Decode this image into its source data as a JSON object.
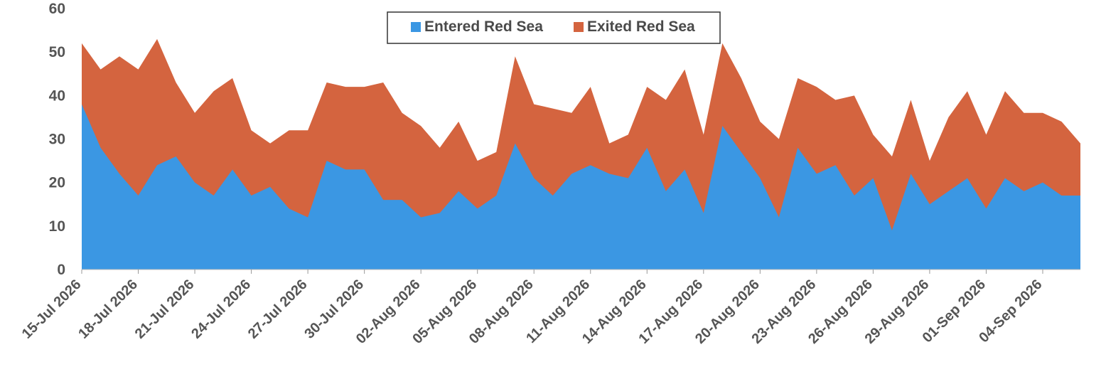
{
  "chart_data": {
    "type": "area",
    "stacked": true,
    "x_start_label": "15-Jul 2026",
    "x_tick_labels": [
      "15-Jul 2026",
      "18-Jul 2026",
      "21-Jul 2026",
      "24-Jul 2026",
      "27-Jul 2026",
      "30-Jul 2026",
      "02-Aug 2026",
      "05-Aug 2026",
      "08-Aug 2026",
      "11-Aug 2026",
      "14-Aug 2026",
      "17-Aug 2026",
      "20-Aug 2026",
      "23-Aug 2026",
      "26-Aug 2026",
      "29-Aug 2026",
      "01-Sep 2026",
      "04-Sep 2026"
    ],
    "y_ticks": [
      "0",
      "10",
      "20",
      "30",
      "40",
      "50",
      "60"
    ],
    "ylim": [
      0,
      60
    ],
    "grid": false,
    "legend_position": "top-center",
    "series": [
      {
        "name": "Entered Red Sea",
        "color": "#3b97e3",
        "values": [
          38,
          28,
          22,
          17,
          24,
          26,
          20,
          17,
          23,
          17,
          19,
          14,
          12,
          25,
          23,
          23,
          16,
          16,
          12,
          13,
          18,
          14,
          17,
          29,
          21,
          17,
          22,
          24,
          22,
          21,
          28,
          18,
          23,
          13,
          33,
          27,
          21,
          12,
          28,
          22,
          24,
          17,
          21,
          9,
          22,
          15,
          18,
          21,
          14,
          21,
          18,
          20,
          17,
          17
        ]
      },
      {
        "name": "Exited Red Sea",
        "color": "#d4643f",
        "values": [
          14,
          18,
          27,
          29,
          29,
          17,
          16,
          24,
          21,
          15,
          10,
          18,
          20,
          18,
          19,
          19,
          27,
          20,
          21,
          15,
          16,
          11,
          10,
          20,
          17,
          20,
          14,
          18,
          7,
          10,
          14,
          21,
          23,
          18,
          19,
          17,
          13,
          18,
          16,
          20,
          15,
          23,
          10,
          17,
          17,
          10,
          17,
          20,
          17,
          20,
          18,
          16,
          17,
          12
        ]
      }
    ]
  }
}
